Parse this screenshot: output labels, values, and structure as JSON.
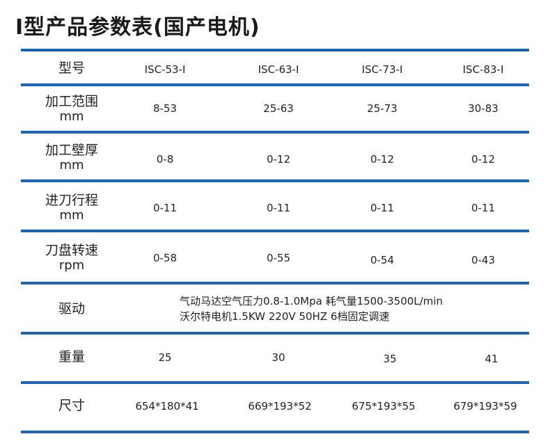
{
  "title": "I型产品参数表(国产电机)",
  "header": {
    "label": "型号",
    "models": [
      "ISC-53-I",
      "ISC-63-I",
      "ISC-73-I",
      "ISC-83-I"
    ]
  },
  "rows": [
    {
      "label": "加工范围",
      "unit": "mm",
      "values": [
        "8-53",
        "25-63",
        "25-73",
        "30-83"
      ]
    },
    {
      "label": "加工壁厚",
      "unit": "mm",
      "values": [
        "0-8",
        "0-12",
        "0-12",
        "0-12"
      ]
    },
    {
      "label": "进刀行程",
      "unit": "mm",
      "values": [
        "0-11",
        "0-11",
        "0-11",
        "0-11"
      ]
    },
    {
      "label": "刀盘转速",
      "unit": "rpm",
      "values": [
        "0-58",
        "0-55",
        "0-54",
        "0-43"
      ]
    }
  ],
  "drive": {
    "label": "驱动",
    "line1": "气动马达空气压力0.8-1.0Mpa 耗气量1500-3500L/min",
    "line2": "沃尔特电机1.5KW 220V 50HZ 6档固定调速"
  },
  "weight": {
    "label": "重量",
    "values": [
      "25",
      "30",
      "35",
      "41"
    ]
  },
  "size": {
    "label": "尺寸",
    "values": [
      "654*180*41",
      "669*193*52",
      "675*193*55",
      "679*193*59"
    ]
  },
  "accent_color": "#1a63b3"
}
